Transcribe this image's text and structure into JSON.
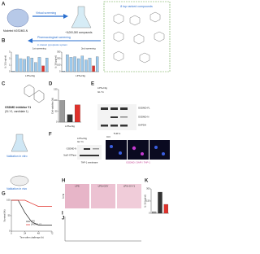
{
  "panels": {
    "A": {
      "letter": "A",
      "protein_label": "Modeled hGSDMD-N",
      "arrow_label": "Virtual screening",
      "library": "~5,000,000 compounds",
      "box_title": "8 top ranked compounds"
    },
    "B": {
      "letter": "B",
      "arrow_label": "Pharmacological screening",
      "system": "in classic pyroptosis system",
      "step1": "1st screening",
      "step2": "2nd screening",
      "group_label": "LPS+Nig",
      "charts": [
        {
          "type": "bar",
          "y_label": "IL-1β (ng/ml)",
          "ylim": [
            0,
            3
          ],
          "yticks": [
            0,
            1,
            2,
            3
          ],
          "color": "#9cc9ec",
          "highlight_color": "#e0312b",
          "values": [
            0.1,
            2.6,
            2.0,
            1.9,
            2.3,
            2.1,
            1.4,
            2.2,
            0.9,
            2.1
          ],
          "highlight": 8
        },
        {
          "type": "bar",
          "y_label": "IL-18 (pg/ml)",
          "ylim": [
            0,
            300
          ],
          "yticks": [
            0,
            100,
            200,
            300
          ],
          "color": "#9cc9ec",
          "highlight_color": "#e0312b",
          "values": [
            10,
            260,
            220,
            230,
            200,
            240,
            180,
            210,
            90,
            230
          ],
          "highlight": 8
        }
      ]
    },
    "C": {
      "letter": "C",
      "title": "GSDMD inhibitor Y1",
      "subtitle": "(GI-Y1, candidate 1)",
      "validation": "Validation in vitro"
    },
    "D": {
      "letter": "D",
      "chart": {
        "type": "bar",
        "y_label": "Cell viability (%)",
        "ylim": [
          0,
          150
        ],
        "yticks": [
          0,
          50,
          100,
          150
        ],
        "values": [
          100,
          35,
          80
        ],
        "colors": [
          "#9a9a9a",
          "#333333",
          "#e0312b"
        ]
      },
      "group_label": "LPS+Nig"
    },
    "E": {
      "letter": "E",
      "treat": "LPS+Nig",
      "drug": "GI-Y1",
      "rows": [
        "GSDMD-FL",
        "GSDMD-N",
        "GAPDH"
      ],
      "cell": "THP-1"
    },
    "F": {
      "letter": "F",
      "treat": "LPS+Nig",
      "drug": "GI-Y1",
      "rows": [
        "GSDMD-N",
        "Na/K-ATPase"
      ],
      "cell": "THP-1 membrane",
      "image_label": "Ctrl",
      "stain": "GSDMD / DAPI / THP-1"
    },
    "vivo": {
      "label": "Validation in vivo"
    },
    "G": {
      "letter": "G",
      "chart": {
        "type": "line",
        "x_label": "Time after challenge (h)",
        "y_label": "Survival (%)",
        "xlim": [
          0,
          72
        ],
        "xticks": [
          0,
          24,
          48,
          72
        ],
        "ylim": [
          0,
          100
        ],
        "yticks": [
          0,
          50,
          100
        ],
        "x": [
          0,
          12,
          24,
          36,
          48,
          60,
          72
        ],
        "series": [
          {
            "name": "LPS",
            "color": "#222222",
            "values": [
              100,
              100,
              60,
              30,
              20,
              20,
              20
            ]
          },
          {
            "name": "LPS+GI-Y1",
            "color": "#e0312b",
            "values": [
              100,
              100,
              100,
              90,
              80,
              80,
              80
            ]
          }
        ]
      }
    },
    "H": {
      "letter": "H",
      "tissue": "Lung",
      "images": [
        "LPS",
        "LPS+GSY",
        "LPS+GI-Y1"
      ]
    },
    "I": {
      "letter": "I"
    },
    "J": {
      "letter": "J"
    },
    "K": {
      "letter": "K",
      "chart": {
        "type": "bar",
        "y_label": "IL-1β (pg/ml)",
        "ylim": [
          0,
          300
        ],
        "yticks": [
          0,
          150,
          300
        ],
        "values": [
          20,
          260,
          110
        ],
        "colors": [
          "#9a9a9a",
          "#333333",
          "#e0312b"
        ]
      }
    }
  }
}
